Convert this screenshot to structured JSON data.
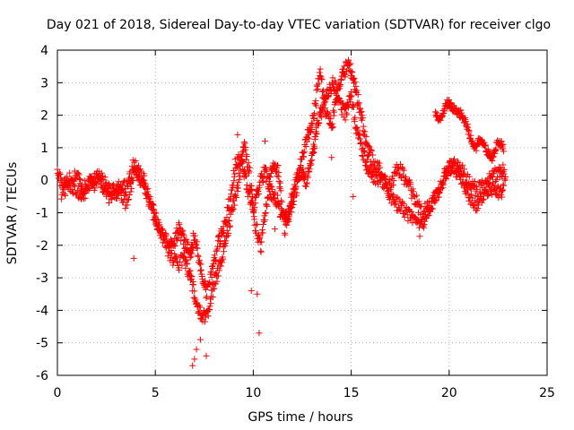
{
  "chart_data": {
    "type": "scatter",
    "title": "Day 021 of 2018, Sidereal Day-to-day VTEC variation (SDTVAR) for receiver clgo",
    "xlabel": "GPS time / hours",
    "ylabel": "SDTVAR / TECUs",
    "xlim": [
      0,
      25
    ],
    "ylim": [
      -6,
      4
    ],
    "xticks": [
      "0",
      "5",
      "10",
      "15",
      "20",
      "25"
    ],
    "yticks": [
      "-6",
      "-5",
      "-4",
      "-3",
      "-2",
      "-1",
      "0",
      "1",
      "2",
      "3",
      "4"
    ],
    "grid": true,
    "marker": "+",
    "series": [
      {
        "name": "SDTVAR",
        "color": "#ff0000",
        "track_a": {
          "x": [
            0.0,
            0.3,
            0.6,
            1.0,
            1.3,
            1.7,
            2.0,
            2.4,
            2.8,
            3.2,
            3.6,
            3.9,
            4.2,
            4.5,
            4.8,
            5.1,
            5.5,
            5.9,
            6.2,
            6.5,
            6.8,
            7.0,
            7.3,
            7.6,
            7.9,
            8.2,
            8.5,
            8.8,
            9.1,
            9.4,
            9.7,
            10.0,
            10.3,
            10.6,
            10.9,
            11.2,
            11.5,
            11.8,
            12.1,
            12.4,
            12.7,
            13.0,
            13.2,
            13.5,
            13.8,
            14.1,
            14.4,
            14.7,
            15.0,
            15.3,
            15.6,
            15.9,
            16.2,
            16.6,
            17.0,
            17.4,
            17.8,
            18.2,
            18.6,
            19.0,
            19.4,
            19.8,
            20.2,
            20.6,
            21.0,
            21.4,
            21.8,
            22.2,
            22.6,
            22.9
          ],
          "y": [
            0.2,
            -0.2,
            0.0,
            0.1,
            -0.3,
            0.0,
            0.2,
            -0.1,
            -0.4,
            -0.3,
            -0.2,
            0.5,
            0.1,
            -0.3,
            -0.8,
            -1.3,
            -1.8,
            -2.0,
            -1.5,
            -1.9,
            -2.2,
            -1.7,
            -2.6,
            -3.4,
            -2.8,
            -2.0,
            -1.5,
            -0.6,
            0.5,
            0.7,
            -0.3,
            -0.8,
            -0.2,
            0.3,
            -0.4,
            -0.6,
            -1.2,
            -1.0,
            -0.2,
            0.3,
            0.0,
            0.6,
            1.5,
            2.2,
            2.6,
            3.0,
            2.4,
            2.0,
            2.6,
            1.5,
            0.8,
            0.3,
            0.1,
            0.0,
            -0.2,
            0.4,
            0.0,
            -0.5,
            -1.0,
            -0.8,
            -0.3,
            0.2,
            0.5,
            0.4,
            -0.1,
            -0.3,
            -0.2,
            0.1,
            0.3,
            0.2
          ]
        },
        "track_b": {
          "x": [
            0.2,
            0.6,
            1.1,
            1.6,
            2.1,
            2.6,
            3.1,
            3.5,
            4.0,
            4.4,
            4.9,
            5.3,
            5.7,
            6.1,
            6.5,
            6.8,
            7.1,
            7.4,
            7.7,
            8.0,
            8.3,
            8.6,
            8.9,
            9.2,
            9.5,
            9.8,
            10.1,
            10.4,
            10.7,
            11.0,
            11.3,
            11.6,
            11.9,
            12.2,
            12.5,
            12.8,
            13.1,
            13.4,
            13.7,
            14.0,
            14.3,
            14.6,
            14.9,
            15.2,
            15.5,
            15.8,
            16.1,
            16.5,
            16.9,
            17.3,
            17.7,
            18.1,
            18.5,
            18.9,
            19.3,
            19.7,
            20.1,
            20.5,
            20.9,
            21.3,
            21.7,
            22.1,
            22.5,
            22.8
          ],
          "y": [
            -0.4,
            -0.1,
            -0.6,
            -0.2,
            0.0,
            -0.5,
            -0.2,
            -0.7,
            0.4,
            0.0,
            -1.0,
            -1.6,
            -2.2,
            -2.6,
            -2.4,
            -3.0,
            -3.8,
            -4.3,
            -4.0,
            -3.2,
            -2.6,
            -1.8,
            -1.0,
            -0.2,
            1.1,
            0.3,
            -1.4,
            -2.0,
            -0.6,
            0.6,
            0.2,
            -1.5,
            -0.9,
            -0.3,
            0.8,
            1.4,
            2.0,
            3.4,
            2.1,
            1.6,
            2.8,
            3.3,
            3.6,
            2.9,
            2.0,
            1.0,
            0.6,
            0.3,
            -0.4,
            -0.7,
            -0.9,
            -1.2,
            -1.5,
            -1.0,
            -0.6,
            0.0,
            0.5,
            0.2,
            -0.4,
            -0.8,
            -0.5,
            -0.2,
            -0.4,
            -0.3
          ]
        },
        "track_c": {
          "x": [
            19.3,
            19.6,
            19.9,
            20.1,
            20.4,
            20.7,
            21.0,
            21.3,
            21.6,
            21.9,
            22.2,
            22.5,
            22.8
          ],
          "y": [
            2.0,
            1.9,
            2.4,
            2.3,
            2.1,
            2.0,
            1.5,
            0.9,
            1.3,
            0.9,
            0.7,
            1.2,
            1.0
          ]
        },
        "outliers": {
          "x": [
            6.9,
            7.0,
            7.1,
            7.3,
            7.6,
            3.9,
            9.2,
            9.9,
            10.2,
            10.3,
            10.6,
            11.1,
            14.0,
            15.1
          ],
          "y": [
            -5.7,
            -5.5,
            -5.2,
            -4.9,
            -5.4,
            -2.4,
            1.4,
            -3.4,
            -3.5,
            -4.7,
            1.2,
            -1.5,
            0.7,
            -0.5
          ]
        }
      }
    ]
  }
}
